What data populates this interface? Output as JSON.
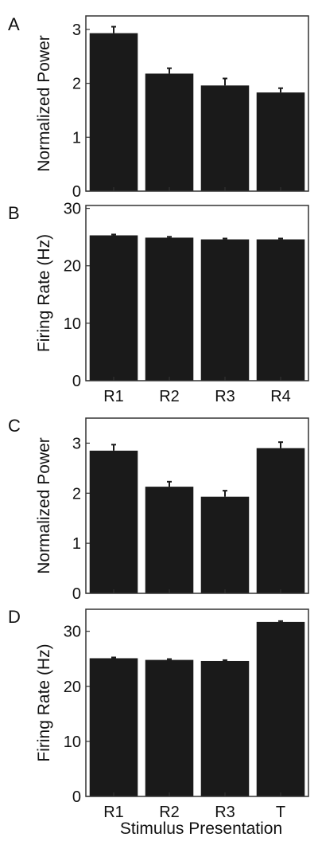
{
  "figure": {
    "xlabel": "Stimulus Presentation"
  },
  "colors": {
    "bar": "#1a1a1a",
    "axis": "#333333",
    "background": "#ffffff"
  },
  "chart_data": [
    {
      "panel": "A",
      "type": "bar",
      "categories": [
        "R1",
        "R2",
        "R3",
        "R4"
      ],
      "show_category_labels": false,
      "values": [
        2.93,
        2.18,
        1.96,
        1.83
      ],
      "errors": [
        0.12,
        0.1,
        0.13,
        0.08
      ],
      "ylabel": "Normalized Power",
      "ylim": [
        0,
        3.25
      ],
      "yticks": [
        0,
        1,
        2,
        3
      ],
      "grid": false
    },
    {
      "panel": "B",
      "type": "bar",
      "categories": [
        "R1",
        "R2",
        "R3",
        "R4"
      ],
      "show_category_labels": true,
      "values": [
        25.3,
        24.9,
        24.6,
        24.6
      ],
      "errors": [
        0.15,
        0.15,
        0.15,
        0.15
      ],
      "ylabel": "Firing Rate (Hz)",
      "ylim": [
        0,
        30.5
      ],
      "yticks": [
        0,
        10,
        20,
        30
      ],
      "grid": false
    },
    {
      "panel": "C",
      "type": "bar",
      "categories": [
        "R1",
        "R2",
        "R3",
        "T"
      ],
      "show_category_labels": false,
      "values": [
        2.85,
        2.13,
        1.93,
        2.9
      ],
      "errors": [
        0.12,
        0.1,
        0.12,
        0.12
      ],
      "ylabel": "Normalized Power",
      "ylim": [
        0,
        3.5
      ],
      "yticks": [
        0,
        1,
        2,
        3
      ],
      "grid": false
    },
    {
      "panel": "D",
      "type": "bar",
      "categories": [
        "R1",
        "R2",
        "R3",
        "T"
      ],
      "show_category_labels": true,
      "values": [
        25.1,
        24.8,
        24.6,
        31.7
      ],
      "errors": [
        0.15,
        0.15,
        0.15,
        0.15
      ],
      "ylabel": "Firing Rate (Hz)",
      "ylim": [
        0,
        34
      ],
      "yticks": [
        0,
        10,
        20,
        30
      ],
      "grid": false
    }
  ]
}
